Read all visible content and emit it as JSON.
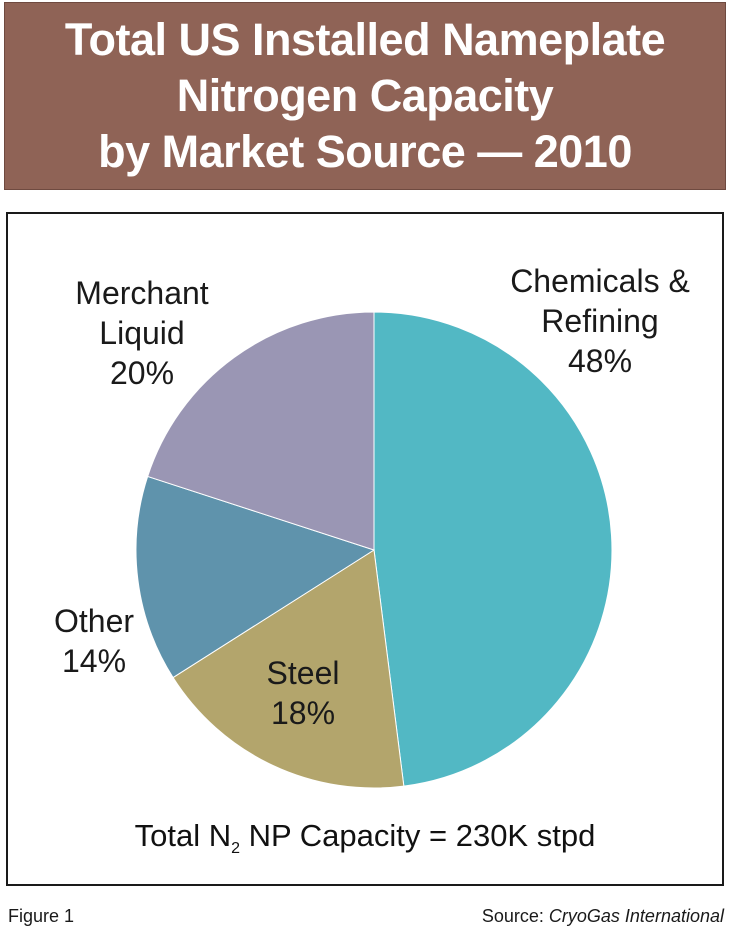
{
  "title_lines": [
    "Total US Installed Nameplate",
    "Nitrogen Capacity",
    "by Market Source — 2010"
  ],
  "total_note": {
    "prefix": "Total N",
    "subscript": "2",
    "suffix": " NP Capacity = 230K stpd"
  },
  "footer": {
    "figure_label": "Figure 1",
    "source_prefix": "Source: ",
    "source_name": "CryoGas International"
  },
  "colors": {
    "title_background": "#8f6356",
    "chemicals_refining": "#52b8c4",
    "steel": "#b3a56c",
    "other": "#5f93ac",
    "merchant_liquid": "#9a96b4"
  },
  "chart_data": {
    "type": "pie",
    "title": "Total US Installed Nameplate Nitrogen Capacity by Market Source — 2010",
    "slices": [
      {
        "label_lines": [
          "Chemicals &",
          "Refining"
        ],
        "value": 48,
        "value_label": "48%",
        "color": "#52b8c4"
      },
      {
        "label_lines": [
          "Steel"
        ],
        "value": 18,
        "value_label": "18%",
        "color": "#b3a56c"
      },
      {
        "label_lines": [
          "Other"
        ],
        "value": 14,
        "value_label": "14%",
        "color": "#5f93ac"
      },
      {
        "label_lines": [
          "Merchant",
          "Liquid"
        ],
        "value": 20,
        "value_label": "20%",
        "color": "#9a96b4"
      }
    ],
    "start": "12 o'clock",
    "direction": "clockwise"
  }
}
